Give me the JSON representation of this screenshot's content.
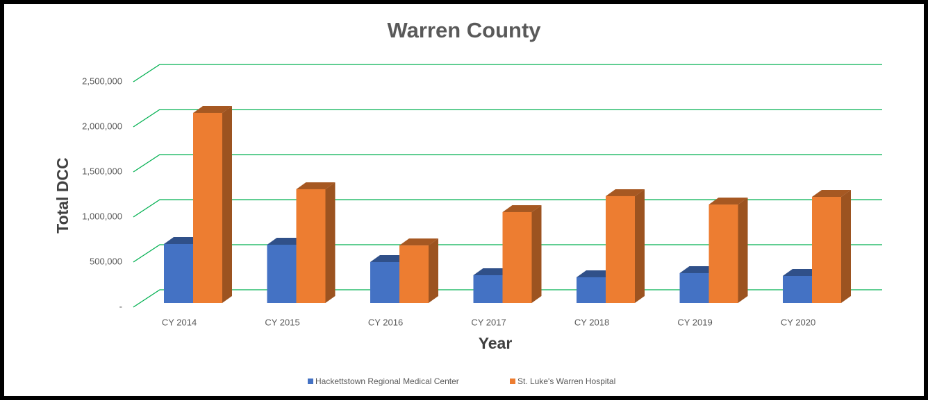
{
  "chart_data": {
    "type": "bar3d",
    "title": "Warren County",
    "x_label": "Year",
    "y_label": "Total DCC",
    "categories": [
      "CY 2014",
      "CY 2015",
      "CY 2016",
      "CY 2017",
      "CY 2018",
      "CY 2019",
      "CY 2020"
    ],
    "series": [
      {
        "name": "Hackettstown Regional Medical Center",
        "color": "#4472c4",
        "values": [
          654000,
          646000,
          454000,
          308000,
          285000,
          331000,
          300000
        ]
      },
      {
        "name": "St. Luke's Warren Hospital",
        "color": "#ed7d31",
        "values": [
          2108000,
          1262000,
          638000,
          1008000,
          1185000,
          1092000,
          1177000
        ]
      }
    ],
    "ylim": [
      0,
      2500000
    ],
    "yticks": [
      {
        "value": 0,
        "label": "-"
      },
      {
        "value": 500000,
        "label": "500,000"
      },
      {
        "value": 1000000,
        "label": "1,000,000"
      },
      {
        "value": 1500000,
        "label": "1,500,000"
      },
      {
        "value": 2000000,
        "label": "2,000,000"
      },
      {
        "value": 2500000,
        "label": "2,500,000"
      }
    ],
    "grid": true,
    "grid_color": "#00b050",
    "legend": "bottom"
  }
}
